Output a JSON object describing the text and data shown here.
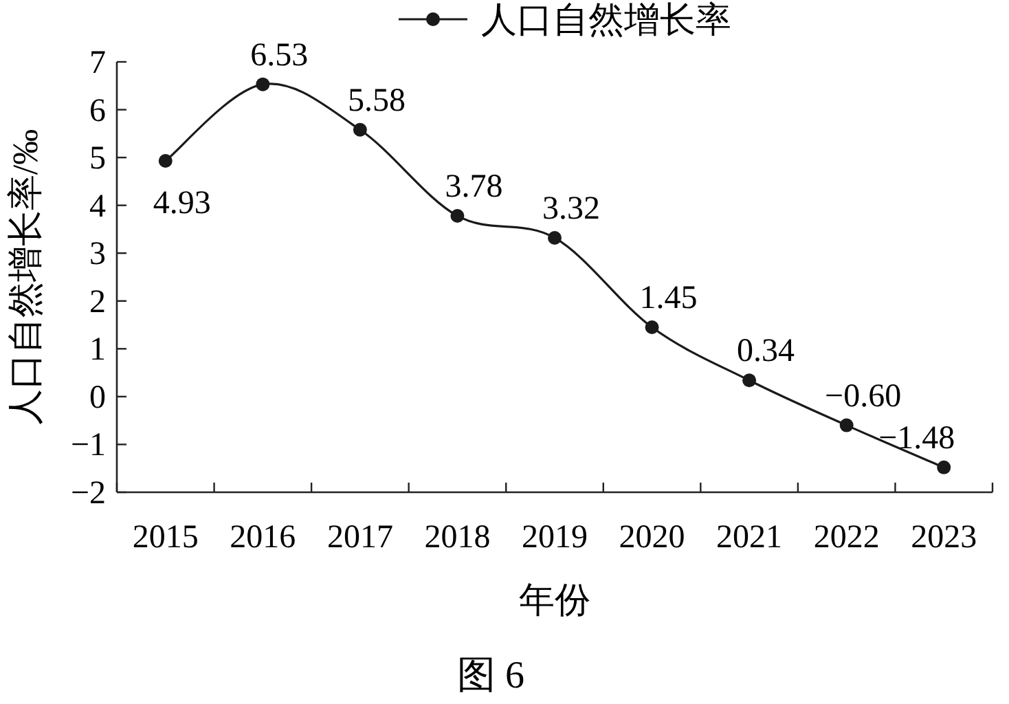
{
  "chart_data": {
    "type": "line",
    "categories": [
      "2015",
      "2016",
      "2017",
      "2018",
      "2019",
      "2020",
      "2021",
      "2022",
      "2023"
    ],
    "series": [
      {
        "name": "人口自然增长率",
        "color": "#1a1a1a",
        "values": [
          4.93,
          6.53,
          5.58,
          3.78,
          3.32,
          1.45,
          0.34,
          -0.6,
          -1.48
        ],
        "value_labels": [
          "4.93",
          "6.53",
          "5.58",
          "3.78",
          "3.32",
          "1.45",
          "0.34",
          "−0.60",
          "−1.48"
        ]
      }
    ],
    "xlabel": "年份",
    "ylabel": "人口自然增长率/‰",
    "ylim": [
      -2,
      7
    ],
    "yticks": [
      -2,
      -1,
      0,
      1,
      2,
      3,
      4,
      5,
      6,
      7
    ],
    "annotations": [
      "图 6"
    ],
    "marker": "circle",
    "legend": "top",
    "grid": false
  }
}
